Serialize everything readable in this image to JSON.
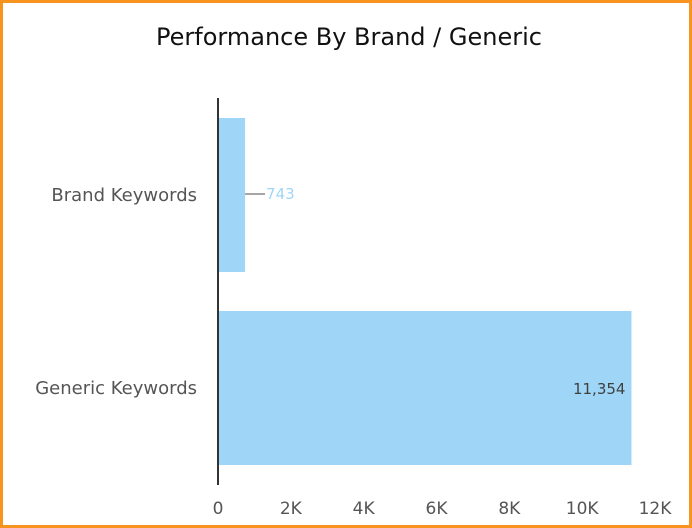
{
  "chart_data": {
    "type": "bar",
    "orientation": "horizontal",
    "title": "Performance By Brand / Generic",
    "categories": [
      "Brand Keywords",
      "Generic Keywords"
    ],
    "values": [
      743,
      11354
    ],
    "value_labels": [
      "743",
      "11,354"
    ],
    "xlabel": "",
    "ylabel": "",
    "xlim": [
      0,
      12000
    ],
    "x_ticks": [
      0,
      2000,
      4000,
      6000,
      8000,
      10000,
      12000
    ],
    "x_tick_labels": [
      "0",
      "2K",
      "4K",
      "6K",
      "8K",
      "10K",
      "12K"
    ],
    "grid": false,
    "legend": "none",
    "bar_color": "#9fd6f7",
    "border_color": "#f7941d"
  }
}
